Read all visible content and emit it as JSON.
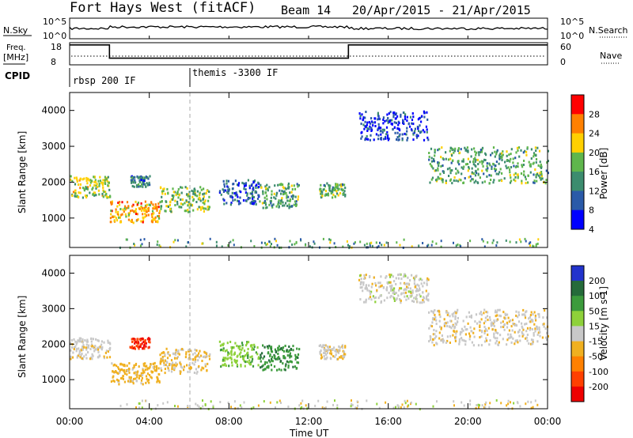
{
  "header": {
    "radar": "Fort Hays West (fitACF)",
    "beam": "Beam 14",
    "dates": "20/Apr/2015 - 21/Apr/2015"
  },
  "noise_panel": {
    "left_label": "N.Sky",
    "left_ticks": [
      "10^5",
      "10^0"
    ],
    "right_ticks": [
      "10^5",
      "10^0"
    ],
    "right_label": "N.Search"
  },
  "freq_panel": {
    "left_label_1": "Freq.",
    "left_label_2": "[MHz]",
    "left_ticks": [
      "18",
      "8"
    ],
    "right_ticks": [
      "60",
      "0"
    ],
    "right_label": "Nave",
    "freq_steps": [
      {
        "from": "00:00",
        "to": "02:00",
        "mhz": 17
      },
      {
        "from": "02:00",
        "to": "14:00",
        "mhz": 11
      },
      {
        "from": "14:00",
        "to": "24:00",
        "mhz": 17
      }
    ]
  },
  "cpid_panel": {
    "label": "CPID",
    "entries": [
      {
        "time": "00:00",
        "name": "rbsp 200 IF"
      },
      {
        "time": "06:00",
        "name": "themis -3300 IF"
      }
    ]
  },
  "power_panel": {
    "ylabel": "Slant Range [km]",
    "yticks": [
      "1000",
      "2000",
      "3000",
      "4000"
    ],
    "colorbar_label": "Power [dB]",
    "colorbar_ticks": [
      "4",
      "8",
      "12",
      "16",
      "20",
      "24",
      "28"
    ],
    "colors": [
      "#0000ff",
      "#2a5aa8",
      "#3c8c6e",
      "#5fb64c",
      "#ffd000",
      "#ff8000",
      "#ff0000"
    ]
  },
  "velocity_panel": {
    "ylabel": "Slant Range [km]",
    "yticks": [
      "1000",
      "2000",
      "3000",
      "4000"
    ],
    "colorbar_label": "Velocity [m s-1]",
    "colorbar_ticks": [
      "200",
      "100",
      "50",
      "15",
      "-15",
      "-50",
      "-100",
      "-200"
    ],
    "colors": [
      "#2233cc",
      "#256b3a",
      "#3c9b3c",
      "#8ed13a",
      "#c8c8c8",
      "#f0b020",
      "#ff8000",
      "#ff4000",
      "#ee0000"
    ]
  },
  "xaxis": {
    "label": "Time UT",
    "ticks": [
      "00:00",
      "04:00",
      "08:00",
      "12:00",
      "16:00",
      "20:00",
      "00:00"
    ]
  },
  "chart_data": {
    "type": "heatmap",
    "title": "Fort Hays West (fitACF)",
    "xlabel": "Time UT",
    "ylabel": "Slant Range [km]",
    "xlim_hours": [
      0,
      24
    ],
    "ylim_km": [
      180,
      4500
    ],
    "scatter_regions": [
      {
        "t0": 0.0,
        "t1": 2.0,
        "r0": 1600,
        "r1": 2200,
        "power_db": 18,
        "velocity": -5
      },
      {
        "t0": 2.0,
        "t1": 4.5,
        "r0": 900,
        "r1": 1500,
        "power_db": 22,
        "velocity": -30
      },
      {
        "t0": 4.5,
        "t1": 7.0,
        "r0": 1200,
        "r1": 1900,
        "power_db": 16,
        "velocity": -20
      },
      {
        "t0": 7.5,
        "t1": 9.5,
        "r0": 1400,
        "r1": 2100,
        "power_db": 8,
        "velocity": 40
      },
      {
        "t0": 9.5,
        "t1": 11.5,
        "r0": 1300,
        "r1": 2000,
        "power_db": 14,
        "velocity": 90
      },
      {
        "t0": 12.5,
        "t1": 13.8,
        "r0": 1600,
        "r1": 2000,
        "power_db": 14,
        "velocity": -5
      },
      {
        "t0": 14.5,
        "t1": 18.0,
        "r0": 3200,
        "r1": 4000,
        "power_db": 6,
        "velocity": 0
      },
      {
        "t0": 18.0,
        "t1": 24.0,
        "r0": 2000,
        "r1": 3000,
        "power_db": 14,
        "velocity": -5
      },
      {
        "t0": 3.0,
        "t1": 4.0,
        "r0": 1900,
        "r1": 2200,
        "power_db": 10,
        "velocity": -200
      }
    ]
  }
}
